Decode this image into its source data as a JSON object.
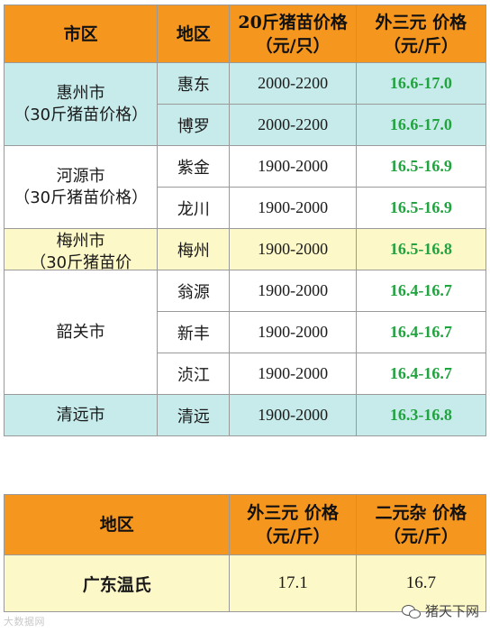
{
  "price_table": {
    "headers": {
      "city": "市区",
      "district": "地区",
      "piglet_price": "20斤猪苗价格（元/只）",
      "outbound_price": "外三元 价格（元/斤）"
    },
    "groups": [
      {
        "city": "惠州市",
        "note": "（30斤猪苗价格）",
        "color": "#c7ebeb",
        "rows": [
          {
            "district": "惠东",
            "piglet": "2000-2200",
            "price": "16.6-17.0"
          },
          {
            "district": "博罗",
            "piglet": "2000-2200",
            "price": "16.6-17.0"
          }
        ]
      },
      {
        "city": "河源市",
        "note": "（30斤猪苗价格）",
        "color": "#ffffff",
        "rows": [
          {
            "district": "紫金",
            "piglet": "1900-2000",
            "price": "16.5-16.9"
          },
          {
            "district": "龙川",
            "piglet": "1900-2000",
            "price": "16.5-16.9"
          }
        ]
      },
      {
        "city": "梅州市",
        "note": "（30斤猪苗价",
        "color": "#fdf8c8",
        "rows": [
          {
            "district": "梅州",
            "piglet": "1900-2000",
            "price": "16.5-16.8"
          }
        ]
      },
      {
        "city": "韶关市",
        "note": "",
        "color": "#ffffff",
        "rows": [
          {
            "district": "翁源",
            "piglet": "1900-2000",
            "price": "16.4-16.7"
          },
          {
            "district": "新丰",
            "piglet": "1900-2000",
            "price": "16.4-16.7"
          },
          {
            "district": "浈江",
            "piglet": "1900-2000",
            "price": "16.4-16.7"
          }
        ]
      },
      {
        "city": "清远市",
        "note": "",
        "color": "#c7ebeb",
        "rows": [
          {
            "district": "清远",
            "piglet": "1900-2000",
            "price": "16.3-16.8"
          }
        ]
      }
    ]
  },
  "summary_table": {
    "headers": {
      "region": "地区",
      "outbound": "外三元 价格（元/斤）",
      "two_cross": "二元杂 价格（元/斤）"
    },
    "row": {
      "region": "广东温氏",
      "outbound": "17.1",
      "two_cross": "16.7"
    }
  },
  "watermark": {
    "left": "大数据网",
    "right": "猪天下网"
  },
  "colors": {
    "header_orange": "#f5961e",
    "price_green": "#21a33f",
    "teal_fill": "#c7ebeb",
    "yellow_fill": "#fdf8c8"
  }
}
